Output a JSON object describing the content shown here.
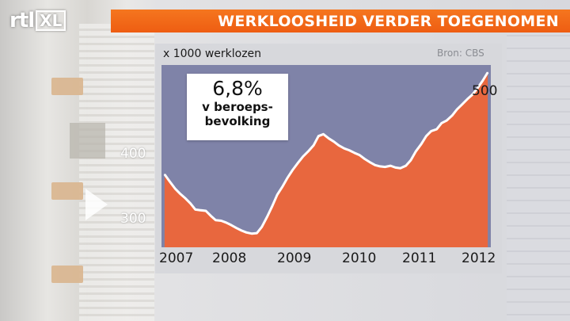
{
  "header": {
    "logo_primary": "rtl",
    "logo_secondary": "XL",
    "headline": "WERKLOOSHEID VERDER TOEGENOMEN"
  },
  "colors": {
    "headline_bar": "#f06414",
    "area_fill": "#e8673e",
    "line": "#ffffff",
    "plot_background": "#7f83a8"
  },
  "chart_data": {
    "type": "area",
    "ylabel": "x 1000 werklozen",
    "source": "Bron: CBS",
    "xlim": [
      2006.95,
      2012.3
    ],
    "ylim": [
      265,
      560
    ],
    "x_ticks": [
      "2007",
      "2008",
      "2009",
      "2010",
      "2011",
      "2012"
    ],
    "y_ticks": [
      300,
      400,
      500
    ],
    "annotation": {
      "value": "6,8%",
      "line1": "v beroeps-",
      "line2": "bevolking"
    },
    "series": [
      {
        "x": [
          2007.0,
          2007.08,
          2007.17,
          2007.25,
          2007.33,
          2007.42,
          2007.5,
          2007.58,
          2007.67,
          2007.75,
          2007.83,
          2007.92,
          2008.0,
          2008.08,
          2008.17,
          2008.25,
          2008.33,
          2008.42,
          2008.5,
          2008.58,
          2008.67,
          2008.75,
          2008.83,
          2008.92,
          2009.0,
          2009.08,
          2009.17,
          2009.25,
          2009.33,
          2009.42,
          2009.5,
          2009.58,
          2009.67,
          2009.75,
          2009.83,
          2009.92,
          2010.0,
          2010.08,
          2010.17,
          2010.25,
          2010.33,
          2010.42,
          2010.5,
          2010.58,
          2010.67,
          2010.75,
          2010.83,
          2010.92,
          2011.0,
          2011.08,
          2011.17,
          2011.25,
          2011.33,
          2011.42,
          2011.5,
          2011.58,
          2011.67,
          2011.75,
          2011.83,
          2011.92,
          2012.0,
          2012.08,
          2012.17,
          2012.25
        ],
        "values": [
          383,
          372,
          360,
          352,
          345,
          336,
          326,
          325,
          324,
          316,
          309,
          308,
          305,
          301,
          296,
          292,
          289,
          287,
          288,
          298,
          315,
          332,
          350,
          364,
          378,
          390,
          402,
          412,
          420,
          430,
          445,
          448,
          441,
          436,
          430,
          425,
          422,
          418,
          414,
          408,
          403,
          398,
          396,
          395,
          397,
          394,
          393,
          397,
          406,
          420,
          432,
          445,
          453,
          456,
          466,
          470,
          478,
          488,
          496,
          505,
          512,
          522,
          535,
          548
        ]
      }
    ]
  }
}
